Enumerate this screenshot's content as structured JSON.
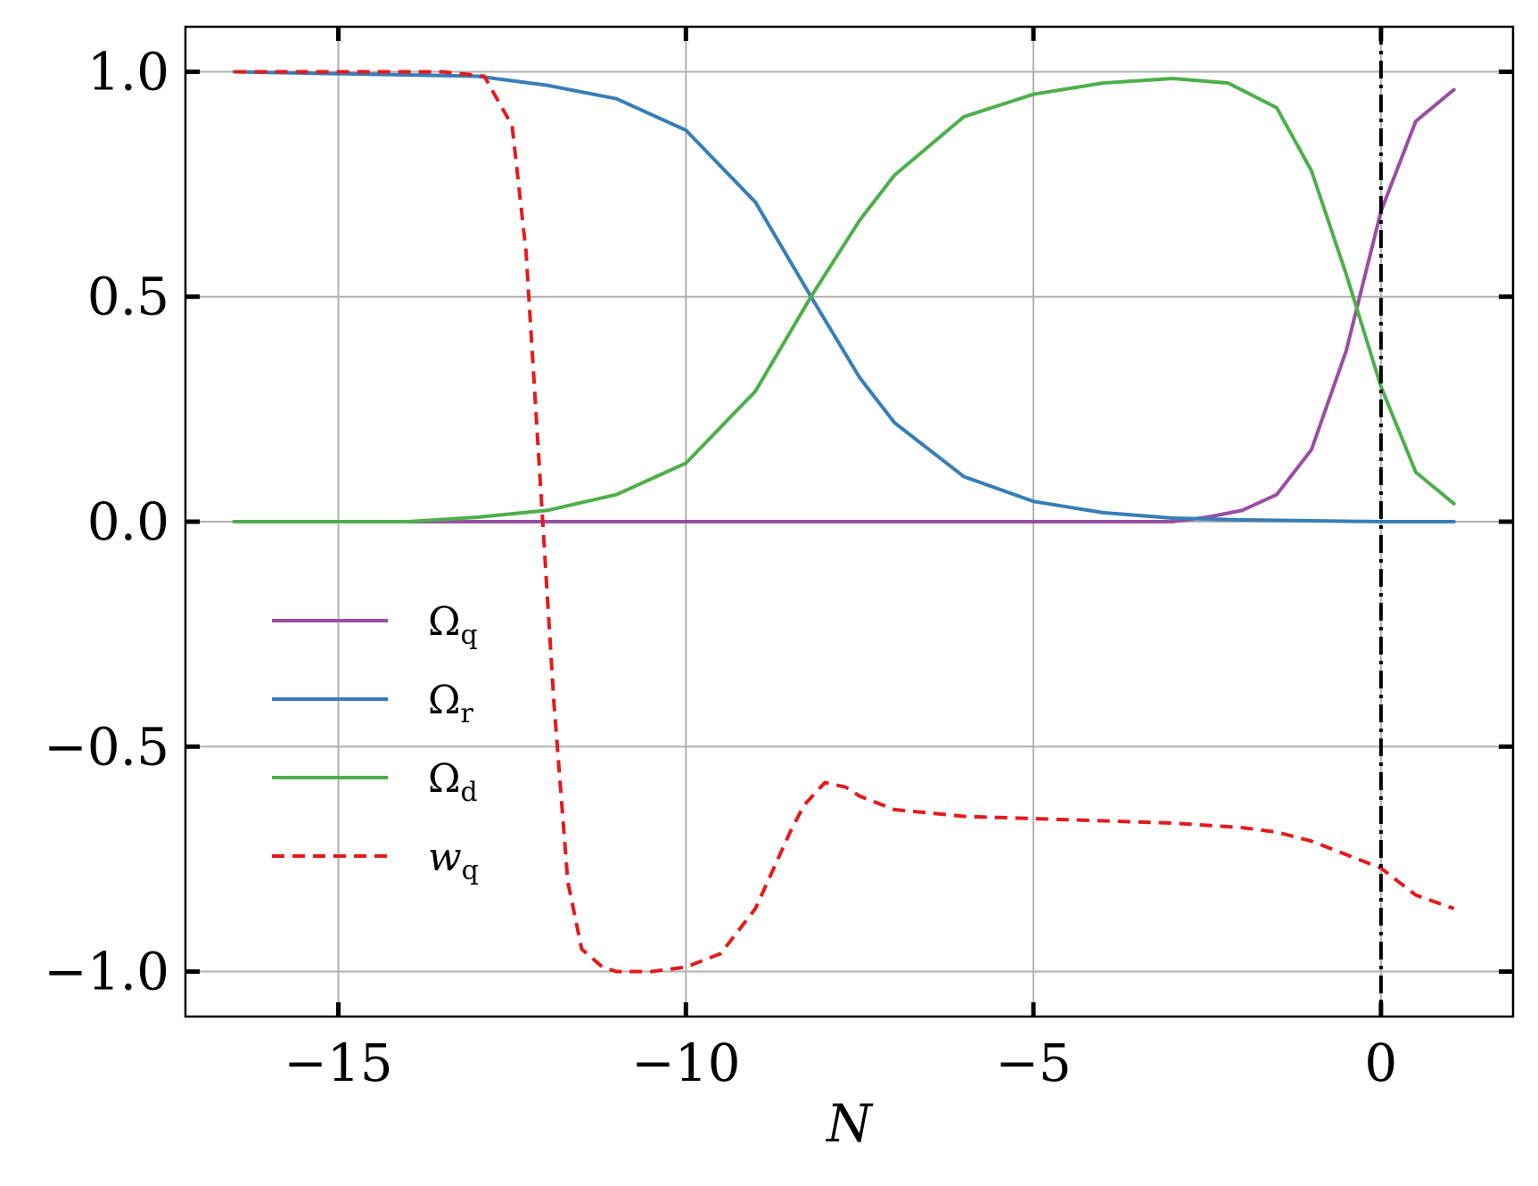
{
  "chart_data": {
    "type": "line",
    "title": "",
    "xlabel": "N",
    "ylabel": "",
    "xlim": [
      -17.2,
      1.9
    ],
    "ylim": [
      -1.1,
      1.1
    ],
    "xticks": [
      -15,
      -10,
      -5,
      0
    ],
    "xtick_labels": [
      "−15",
      "−10",
      "−5",
      "0"
    ],
    "yticks": [
      1.0,
      0.5,
      0.0,
      -0.5,
      -1.0
    ],
    "ytick_labels": [
      "1.0",
      "0.5",
      "0.0",
      "−0.5",
      "−1.0"
    ],
    "grid": true,
    "legend_position": "center-left",
    "vline": {
      "x": 0,
      "style": "dash-dot",
      "color": "#000000"
    },
    "series": [
      {
        "name": "Ω",
        "sub": "q",
        "italic": false,
        "color": "#984ea3",
        "dash": "solid",
        "x": [
          -16.5,
          -12,
          -8,
          -5,
          -3,
          -2.5,
          -2,
          -1.5,
          -1,
          -0.5,
          0,
          0.5,
          1.05
        ],
        "y": [
          0.0,
          0.0,
          0.0,
          0.0,
          0.0,
          0.01,
          0.025,
          0.06,
          0.16,
          0.38,
          0.69,
          0.89,
          0.96
        ]
      },
      {
        "name": "Ω",
        "sub": "r",
        "italic": false,
        "color": "#377eb8",
        "dash": "solid",
        "x": [
          -16.5,
          -13,
          -12,
          -11,
          -10,
          -9,
          -8.2,
          -7.5,
          -7,
          -6,
          -5,
          -4,
          -3,
          -2,
          -1,
          0,
          1.05
        ],
        "y": [
          1.0,
          0.99,
          0.97,
          0.94,
          0.87,
          0.71,
          0.5,
          0.32,
          0.22,
          0.1,
          0.045,
          0.02,
          0.008,
          0.004,
          0.002,
          0.0,
          0.0
        ]
      },
      {
        "name": "Ω",
        "sub": "d",
        "italic": false,
        "color": "#4daf4a",
        "dash": "solid",
        "x": [
          -16.5,
          -14,
          -13,
          -12,
          -11,
          -10,
          -9,
          -8.2,
          -7.5,
          -7,
          -6,
          -5,
          -4,
          -3,
          -2.2,
          -1.5,
          -1,
          -0.5,
          0,
          0.5,
          1.05
        ],
        "y": [
          0.0,
          0.0,
          0.01,
          0.025,
          0.06,
          0.13,
          0.29,
          0.5,
          0.67,
          0.77,
          0.9,
          0.95,
          0.975,
          0.985,
          0.975,
          0.92,
          0.78,
          0.55,
          0.3,
          0.11,
          0.04
        ]
      },
      {
        "name": "w",
        "sub": "q",
        "italic": true,
        "color": "#e41a1c",
        "dash": "dashed",
        "x": [
          -16.5,
          -13.5,
          -12.9,
          -12.5,
          -12.3,
          -12.1,
          -11.9,
          -11.7,
          -11.5,
          -11.2,
          -11,
          -10.5,
          -10,
          -9.5,
          -9,
          -8.5,
          -8.3,
          -8,
          -7.7,
          -7.5,
          -7,
          -6,
          -5,
          -4,
          -3,
          -2,
          -1.5,
          -1,
          -0.5,
          0,
          0.5,
          1.05
        ],
        "y": [
          1.0,
          1.0,
          0.99,
          0.88,
          0.6,
          0.1,
          -0.4,
          -0.8,
          -0.95,
          -0.99,
          -1.0,
          -1.0,
          -0.99,
          -0.96,
          -0.86,
          -0.69,
          -0.63,
          -0.58,
          -0.59,
          -0.61,
          -0.64,
          -0.655,
          -0.66,
          -0.665,
          -0.67,
          -0.68,
          -0.69,
          -0.71,
          -0.74,
          -0.77,
          -0.83,
          -0.86
        ]
      }
    ]
  }
}
